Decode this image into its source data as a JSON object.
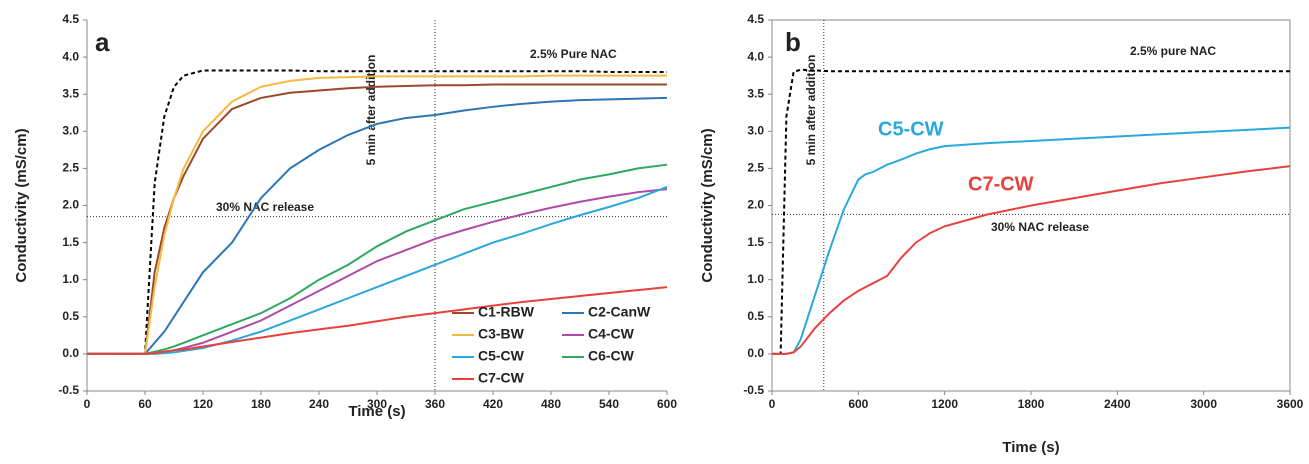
{
  "chart_data": [
    {
      "type": "line",
      "panel": "a",
      "x_label": "Time (s)",
      "y_label": "Conductivity (mS/cm)",
      "legend": "lower right",
      "x": [
        0,
        60,
        70,
        80,
        90,
        100,
        120,
        150,
        180,
        210,
        240,
        270,
        300,
        330,
        360,
        390,
        420,
        450,
        480,
        510,
        540,
        570,
        600
      ],
      "xlim": [
        0,
        600
      ],
      "xticks": [
        0,
        60,
        120,
        180,
        240,
        300,
        360,
        420,
        480,
        540,
        600
      ],
      "ylim": [
        -0.5,
        4.5
      ],
      "yticks": [
        -0.5,
        {
          "value": 0,
          "label": "0.0"
        },
        0.5,
        {
          "value": 1,
          "label": "1.0"
        },
        1.5,
        {
          "value": 2,
          "label": "2.0"
        },
        2.5,
        {
          "value": 3,
          "label": "3.0"
        },
        3.5,
        {
          "value": 4,
          "label": "4.0"
        },
        4.5
      ],
      "reference_lines": [
        {
          "axis": "y",
          "value": 1.85,
          "label": "30% NAC release"
        },
        {
          "axis": "x",
          "value": 360,
          "label": "5 min after addition"
        }
      ],
      "series": [
        {
          "name": "2.5% Pure NAC",
          "color": "#000000",
          "dash": true,
          "inline_label": true,
          "values": [
            0,
            0,
            2.3,
            3.2,
            3.6,
            3.75,
            3.82,
            3.82,
            3.82,
            3.82,
            3.81,
            3.81,
            3.81,
            3.81,
            3.81,
            3.81,
            3.81,
            3.81,
            3.81,
            3.81,
            3.8,
            3.8,
            3.8
          ]
        },
        {
          "name": "C1-RBW",
          "color": "#9a4a2c",
          "values": [
            0,
            0,
            1.1,
            1.7,
            2.1,
            2.4,
            2.9,
            3.3,
            3.45,
            3.52,
            3.55,
            3.58,
            3.6,
            3.61,
            3.62,
            3.62,
            3.63,
            3.63,
            3.63,
            3.63,
            3.63,
            3.63,
            3.63
          ]
        },
        {
          "name": "C2-CanW",
          "color": "#2e75b6",
          "values": [
            0,
            0,
            0.15,
            0.3,
            0.5,
            0.7,
            1.1,
            1.5,
            2.1,
            2.5,
            2.75,
            2.95,
            3.1,
            3.18,
            3.22,
            3.28,
            3.33,
            3.37,
            3.4,
            3.42,
            3.43,
            3.44,
            3.45
          ]
        },
        {
          "name": "C3-BW",
          "color": "#f4b942",
          "values": [
            0,
            0,
            0.9,
            1.6,
            2.1,
            2.5,
            3.0,
            3.4,
            3.6,
            3.68,
            3.72,
            3.73,
            3.74,
            3.74,
            3.74,
            3.74,
            3.74,
            3.74,
            3.75,
            3.75,
            3.75,
            3.75,
            3.75
          ]
        },
        {
          "name": "C4-CW",
          "color": "#b04aa8",
          "values": [
            0,
            0,
            0.01,
            0.02,
            0.05,
            0.08,
            0.15,
            0.3,
            0.45,
            0.65,
            0.85,
            1.05,
            1.25,
            1.4,
            1.55,
            1.67,
            1.78,
            1.88,
            1.97,
            2.05,
            2.12,
            2.18,
            2.22
          ]
        },
        {
          "name": "C5-CW",
          "color": "#2aa8dc",
          "values": [
            0,
            0,
            0,
            0.01,
            0.02,
            0.04,
            0.08,
            0.18,
            0.3,
            0.45,
            0.6,
            0.75,
            0.9,
            1.05,
            1.2,
            1.35,
            1.5,
            1.62,
            1.75,
            1.87,
            1.98,
            2.1,
            2.25
          ]
        },
        {
          "name": "C6-CW",
          "color": "#2ea860",
          "values": [
            0,
            0,
            0.03,
            0.06,
            0.1,
            0.15,
            0.25,
            0.4,
            0.55,
            0.75,
            1.0,
            1.2,
            1.45,
            1.65,
            1.8,
            1.95,
            2.05,
            2.15,
            2.25,
            2.35,
            2.42,
            2.5,
            2.55
          ]
        },
        {
          "name": "C7-CW",
          "color": "#e8413c",
          "values": [
            0,
            0,
            0.01,
            0.03,
            0.05,
            0.06,
            0.1,
            0.16,
            0.22,
            0.28,
            0.33,
            0.38,
            0.44,
            0.5,
            0.55,
            0.6,
            0.65,
            0.7,
            0.74,
            0.78,
            0.82,
            0.86,
            0.9
          ]
        }
      ]
    },
    {
      "type": "line",
      "panel": "b",
      "x_label": "Time (s)",
      "y_label": "Conductivity (mS/cm)",
      "legend": "none",
      "x": [
        0,
        60,
        100,
        150,
        200,
        300,
        400,
        500,
        600,
        650,
        700,
        800,
        900,
        1000,
        1100,
        1200,
        1500,
        1800,
        2100,
        2400,
        2700,
        3000,
        3300,
        3600
      ],
      "xlim": [
        0,
        3600
      ],
      "xticks": [
        0,
        600,
        1200,
        1800,
        2400,
        3000,
        3600
      ],
      "ylim": [
        -0.5,
        4.5
      ],
      "yticks": [
        -0.5,
        {
          "value": 0,
          "label": "0.0"
        },
        0.5,
        {
          "value": 1,
          "label": "1.0"
        },
        1.5,
        {
          "value": 2,
          "label": "2.0"
        },
        2.5,
        {
          "value": 3,
          "label": "3.0"
        },
        3.5,
        {
          "value": 4,
          "label": "4.0"
        },
        4.5
      ],
      "reference_lines": [
        {
          "axis": "y",
          "value": 1.88,
          "label": "30% NAC release"
        },
        {
          "axis": "x",
          "value": 360,
          "label": "5 min after addition"
        }
      ],
      "series": [
        {
          "name": "2.5% pure NAC",
          "color": "#000000",
          "dash": true,
          "inline_label": true,
          "values": [
            0,
            0,
            3.2,
            3.8,
            3.83,
            3.82,
            3.81,
            3.81,
            3.81,
            3.81,
            3.81,
            3.81,
            3.81,
            3.81,
            3.81,
            3.81,
            3.81,
            3.81,
            3.81,
            3.81,
            3.81,
            3.81,
            3.81,
            3.81
          ]
        },
        {
          "name": "C5-CW",
          "color": "#2aa8dc",
          "inline_label": true,
          "values": [
            0,
            0,
            0,
            0.02,
            0.2,
            0.8,
            1.4,
            1.95,
            2.35,
            2.42,
            2.45,
            2.55,
            2.62,
            2.7,
            2.76,
            2.8,
            2.84,
            2.87,
            2.9,
            2.93,
            2.96,
            2.99,
            3.02,
            3.05
          ]
        },
        {
          "name": "C7-CW",
          "color": "#e8413c",
          "inline_label": true,
          "values": [
            0,
            0,
            0,
            0.02,
            0.1,
            0.35,
            0.55,
            0.72,
            0.85,
            0.9,
            0.95,
            1.05,
            1.3,
            1.5,
            1.63,
            1.72,
            1.88,
            2.0,
            2.1,
            2.2,
            2.3,
            2.38,
            2.46,
            2.53
          ]
        }
      ]
    }
  ]
}
